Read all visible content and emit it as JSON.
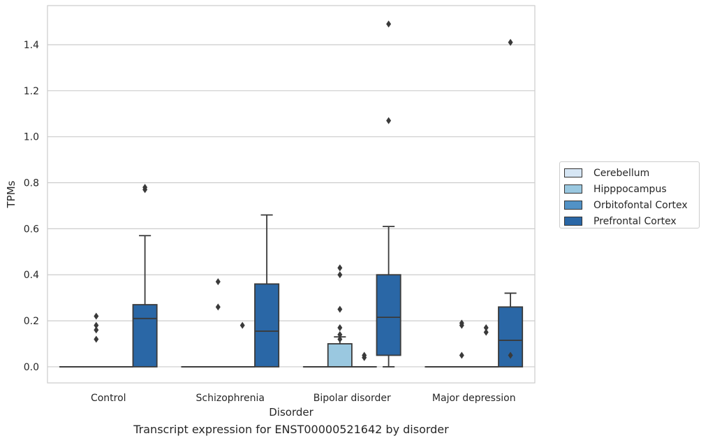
{
  "chart_data": {
    "type": "box",
    "title": "",
    "caption": "Transcript expression for ENST00000521642 by disorder",
    "xlabel": "Disorder",
    "ylabel": "TPMs",
    "ylim": [
      -0.07,
      1.57
    ],
    "yticks": [
      "0.0",
      "0.2",
      "0.4",
      "0.6",
      "0.8",
      "1.0",
      "1.2",
      "1.4"
    ],
    "grid": "horizontal",
    "legend_position": "outside-right",
    "categories": [
      "Control",
      "Schizophrenia",
      "Bipolar disorder",
      "Major depression"
    ],
    "series": [
      {
        "name": "Cerebellum",
        "color": "#d6e6f4",
        "boxes": [
          {
            "q1": 0,
            "median": 0,
            "q3": 0,
            "whislo": 0,
            "whishi": 0,
            "fliers": []
          },
          {
            "q1": 0,
            "median": 0,
            "q3": 0,
            "whislo": 0,
            "whishi": 0,
            "fliers": []
          },
          {
            "q1": 0,
            "median": 0,
            "q3": 0,
            "whislo": 0,
            "whishi": 0,
            "fliers": []
          },
          {
            "q1": 0,
            "median": 0,
            "q3": 0,
            "whislo": 0,
            "whishi": 0,
            "fliers": []
          }
        ]
      },
      {
        "name": "Hipppocampus",
        "color": "#9ac8e0",
        "boxes": [
          {
            "q1": 0,
            "median": 0,
            "q3": 0,
            "whislo": 0,
            "whishi": 0,
            "fliers": [
              0.12,
              0.16,
              0.18,
              0.22
            ]
          },
          {
            "q1": 0,
            "median": 0,
            "q3": 0,
            "whislo": 0,
            "whishi": 0,
            "fliers": [
              0.26,
              0.37
            ]
          },
          {
            "q1": 0,
            "median": 0,
            "q3": 0.1,
            "whislo": 0,
            "whishi": 0.13,
            "fliers": [
              0.12,
              0.14,
              0.17,
              0.25,
              0.4,
              0.43
            ]
          },
          {
            "q1": 0,
            "median": 0,
            "q3": 0,
            "whislo": 0,
            "whishi": 0,
            "fliers": [
              0.05,
              0.18,
              0.19
            ]
          }
        ]
      },
      {
        "name": "Orbitofontal Cortex",
        "color": "#5292c6",
        "boxes": [
          {
            "q1": 0,
            "median": 0,
            "q3": 0,
            "whislo": 0,
            "whishi": 0,
            "fliers": []
          },
          {
            "q1": 0,
            "median": 0,
            "q3": 0,
            "whislo": 0,
            "whishi": 0,
            "fliers": [
              0.18
            ]
          },
          {
            "q1": 0,
            "median": 0,
            "q3": 0,
            "whislo": 0,
            "whishi": 0,
            "fliers": [
              0.04,
              0.05
            ]
          },
          {
            "q1": 0,
            "median": 0,
            "q3": 0,
            "whislo": 0,
            "whishi": 0,
            "fliers": [
              0.15,
              0.17
            ]
          }
        ]
      },
      {
        "name": "Prefrontal Cortex",
        "color": "#2a67a6",
        "boxes": [
          {
            "q1": 0,
            "median": 0.21,
            "q3": 0.27,
            "whislo": 0,
            "whishi": 0.57,
            "fliers": [
              0.77,
              0.78
            ]
          },
          {
            "q1": 0,
            "median": 0.155,
            "q3": 0.36,
            "whislo": 0,
            "whishi": 0.66,
            "fliers": []
          },
          {
            "q1": 0.05,
            "median": 0.215,
            "q3": 0.4,
            "whislo": 0,
            "whishi": 0.61,
            "fliers": [
              1.07,
              1.49
            ]
          },
          {
            "q1": 0,
            "median": 0.115,
            "q3": 0.26,
            "whislo": 0,
            "whishi": 0.32,
            "fliers": [
              0.05,
              1.41
            ]
          }
        ]
      }
    ]
  }
}
